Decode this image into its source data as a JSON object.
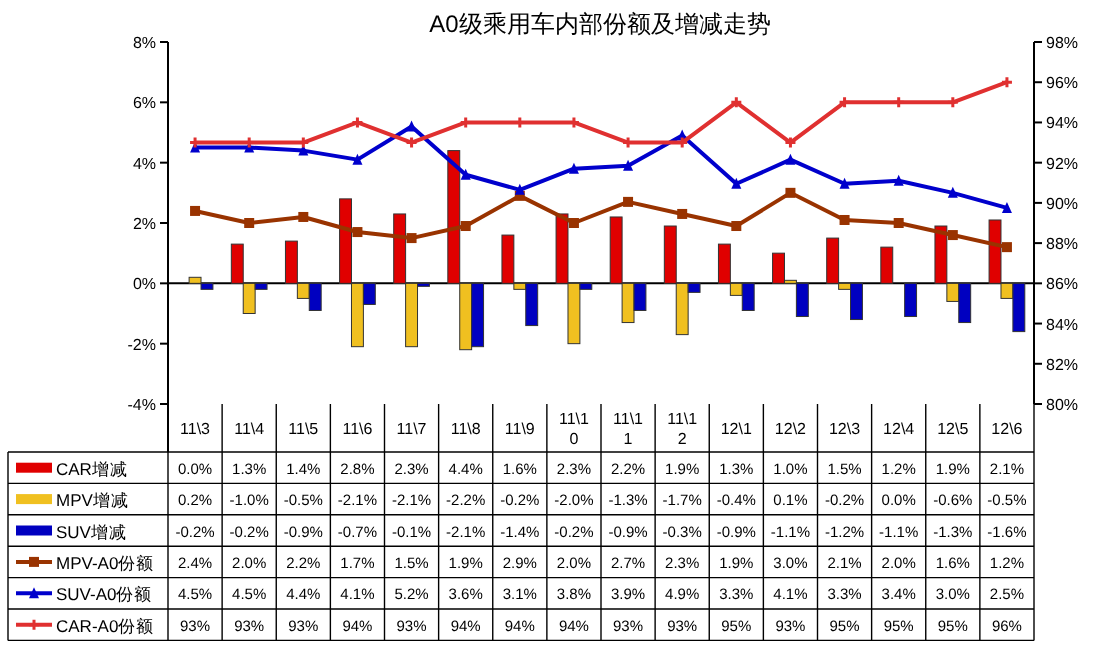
{
  "chart_data": {
    "type": "bar",
    "title": "A0级乘用车内部份额及增减走势",
    "categories": [
      "11\\3",
      "11\\4",
      "11\\5",
      "11\\6",
      "11\\7",
      "11\\8",
      "11\\9",
      "11\\10",
      "11\\11",
      "11\\12",
      "12\\1",
      "12\\2",
      "12\\3",
      "12\\4",
      "12\\5",
      "12\\6"
    ],
    "ylim": [
      -4,
      8
    ],
    "yticks": [
      {
        "value": -4,
        "label": "-4%"
      },
      {
        "value": -2,
        "label": "-2%"
      },
      {
        "value": 0,
        "label": "0%"
      },
      {
        "value": 2,
        "label": "2%"
      },
      {
        "value": 4,
        "label": "4%"
      },
      {
        "value": 6,
        "label": "6%"
      },
      {
        "value": 8,
        "label": "8%"
      }
    ],
    "y2lim": [
      80,
      98
    ],
    "y2ticks": [
      {
        "value": 80,
        "label": "80%"
      },
      {
        "value": 82,
        "label": "82%"
      },
      {
        "value": 84,
        "label": "84%"
      },
      {
        "value": 86,
        "label": "86%"
      },
      {
        "value": 88,
        "label": "88%"
      },
      {
        "value": 90,
        "label": "90%"
      },
      {
        "value": 92,
        "label": "92%"
      },
      {
        "value": 94,
        "label": "94%"
      },
      {
        "value": 96,
        "label": "96%"
      },
      {
        "value": 98,
        "label": "98%"
      }
    ],
    "legend": "bottom",
    "series": [
      {
        "name": "CAR增减",
        "color": "#e00000",
        "values": [
          0.0,
          1.3,
          1.4,
          2.8,
          2.3,
          4.4,
          1.6,
          2.3,
          2.2,
          1.9,
          1.3,
          1.0,
          1.5,
          1.2,
          1.9,
          2.1
        ],
        "value_labels": [
          "0.0%",
          "1.3%",
          "1.4%",
          "2.8%",
          "2.3%",
          "4.4%",
          "1.6%",
          "2.3%",
          "2.2%",
          "1.9%",
          "1.3%",
          "1.0%",
          "1.5%",
          "1.2%",
          "1.9%",
          "2.1%"
        ]
      },
      {
        "name": "MPV增减",
        "color": "#f0c020",
        "values": [
          0.2,
          -1.0,
          -0.5,
          -2.1,
          -2.1,
          -2.2,
          -0.2,
          -2.0,
          -1.3,
          -1.7,
          -0.4,
          0.1,
          -0.2,
          0.0,
          -0.6,
          -0.5
        ],
        "value_labels": [
          "0.2%",
          "-1.0%",
          "-0.5%",
          "-2.1%",
          "-2.1%",
          "-2.2%",
          "-0.2%",
          "-2.0%",
          "-1.3%",
          "-1.7%",
          "-0.4%",
          "0.1%",
          "-0.2%",
          "0.0%",
          "-0.6%",
          "-0.5%"
        ]
      },
      {
        "name": "SUV增减",
        "color": "#0000c0",
        "values": [
          -0.2,
          -0.2,
          -0.9,
          -0.7,
          -0.1,
          -2.1,
          -1.4,
          -0.2,
          -0.9,
          -0.3,
          -0.9,
          -1.1,
          -1.2,
          -1.1,
          -1.3,
          -1.6
        ],
        "value_labels": [
          "-0.2%",
          "-0.2%",
          "-0.9%",
          "-0.7%",
          "-0.1%",
          "-2.1%",
          "-1.4%",
          "-0.2%",
          "-0.9%",
          "-0.3%",
          "-0.9%",
          "-1.1%",
          "-1.2%",
          "-1.1%",
          "-1.3%",
          "-1.6%"
        ]
      },
      {
        "name": "MPV-A0份额",
        "type": "line",
        "marker": "square",
        "color": "#993300",
        "values": [
          2.4,
          2.0,
          2.2,
          1.7,
          1.5,
          1.9,
          2.9,
          2.0,
          2.7,
          2.3,
          1.9,
          3.0,
          2.1,
          2.0,
          1.6,
          1.2
        ],
        "value_labels": [
          "2.4%",
          "2.0%",
          "2.2%",
          "1.7%",
          "1.5%",
          "1.9%",
          "2.9%",
          "2.0%",
          "2.7%",
          "2.3%",
          "1.9%",
          "3.0%",
          "2.1%",
          "2.0%",
          "1.6%",
          "1.2%"
        ]
      },
      {
        "name": "SUV-A0份额",
        "type": "line",
        "marker": "triangle",
        "color": "#0000cc",
        "values": [
          4.5,
          4.5,
          4.4,
          4.1,
          5.2,
          3.6,
          3.1,
          3.8,
          3.9,
          4.9,
          3.3,
          4.1,
          3.3,
          3.4,
          3.0,
          2.5
        ],
        "value_labels": [
          "4.5%",
          "4.5%",
          "4.4%",
          "4.1%",
          "5.2%",
          "3.6%",
          "3.1%",
          "3.8%",
          "3.9%",
          "4.9%",
          "3.3%",
          "4.1%",
          "3.3%",
          "3.4%",
          "3.0%",
          "2.5%"
        ]
      },
      {
        "name": "CAR-A0份额",
        "type": "line",
        "marker": "cross",
        "axis": "y2",
        "color": "#e03030",
        "values": [
          93,
          93,
          93,
          94,
          93,
          94,
          94,
          94,
          93,
          93,
          95,
          93,
          95,
          95,
          95,
          96
        ],
        "value_labels": [
          "93%",
          "93%",
          "93%",
          "94%",
          "93%",
          "94%",
          "94%",
          "94%",
          "93%",
          "93%",
          "95%",
          "93%",
          "95%",
          "95%",
          "95%",
          "96%"
        ]
      }
    ]
  }
}
